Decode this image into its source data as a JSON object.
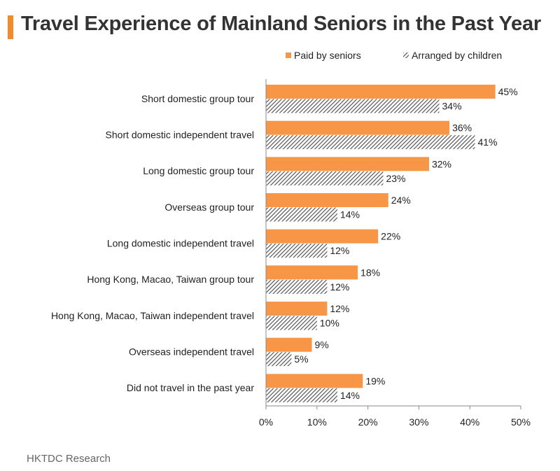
{
  "title": "Travel Experience of Mainland Seniors in the Past Year",
  "source": "HKTDC Research",
  "colors": {
    "accent": "#f28c28",
    "series1": "#f79646",
    "hatch": "#555555"
  },
  "chart_data": {
    "type": "bar",
    "orientation": "horizontal",
    "categories": [
      "Short domestic group tour",
      "Short domestic independent travel",
      "Long domestic group tour",
      "Overseas group tour",
      "Long domestic independent travel",
      "Hong Kong, Macao, Taiwan group tour",
      "Hong Kong, Macao, Taiwan independent travel",
      "Overseas independent travel",
      "Did not travel in the past year"
    ],
    "series": [
      {
        "name": "Paid by seniors",
        "values": [
          45,
          36,
          32,
          24,
          22,
          18,
          12,
          9,
          19
        ],
        "style": "solid"
      },
      {
        "name": "Arranged by children",
        "values": [
          34,
          41,
          23,
          14,
          12,
          12,
          10,
          5,
          14
        ],
        "style": "hatched"
      }
    ],
    "value_suffix": "%",
    "xlim": [
      0,
      50
    ],
    "xticks": [
      "0%",
      "10%",
      "20%",
      "30%",
      "40%",
      "50%"
    ],
    "grid": false,
    "legend": "top-right"
  }
}
